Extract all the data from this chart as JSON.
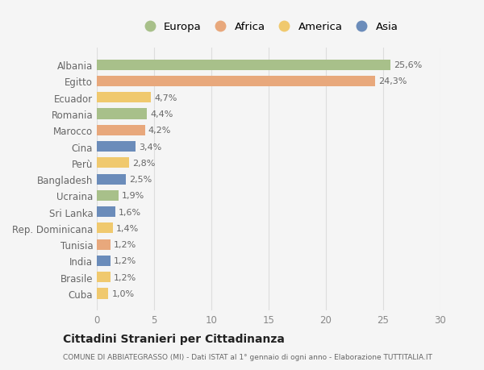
{
  "countries": [
    "Albania",
    "Egitto",
    "Ecuador",
    "Romania",
    "Marocco",
    "Cina",
    "Perù",
    "Bangladesh",
    "Ucraina",
    "Sri Lanka",
    "Rep. Dominicana",
    "Tunisia",
    "India",
    "Brasile",
    "Cuba"
  ],
  "values": [
    25.6,
    24.3,
    4.7,
    4.4,
    4.2,
    3.4,
    2.8,
    2.5,
    1.9,
    1.6,
    1.4,
    1.2,
    1.2,
    1.2,
    1.0
  ],
  "labels": [
    "25,6%",
    "24,3%",
    "4,7%",
    "4,4%",
    "4,2%",
    "3,4%",
    "2,8%",
    "2,5%",
    "1,9%",
    "1,6%",
    "1,4%",
    "1,2%",
    "1,2%",
    "1,2%",
    "1,0%"
  ],
  "continents": [
    "Europa",
    "Africa",
    "America",
    "Europa",
    "Africa",
    "Asia",
    "America",
    "Asia",
    "Europa",
    "Asia",
    "America",
    "Africa",
    "Asia",
    "America",
    "America"
  ],
  "continent_colors": {
    "Europa": "#a8c08a",
    "Africa": "#e8a87c",
    "America": "#f0c96e",
    "Asia": "#6b8cba"
  },
  "legend_order": [
    "Europa",
    "Africa",
    "America",
    "Asia"
  ],
  "title": "Cittadini Stranieri per Cittadinanza",
  "subtitle": "COMUNE DI ABBIATEGRASSO (MI) - Dati ISTAT al 1° gennaio di ogni anno - Elaborazione TUTTITALIA.IT",
  "xlim": [
    0,
    30
  ],
  "xticks": [
    0,
    5,
    10,
    15,
    20,
    25,
    30
  ],
  "background_color": "#f5f5f5",
  "grid_color": "#dddddd"
}
